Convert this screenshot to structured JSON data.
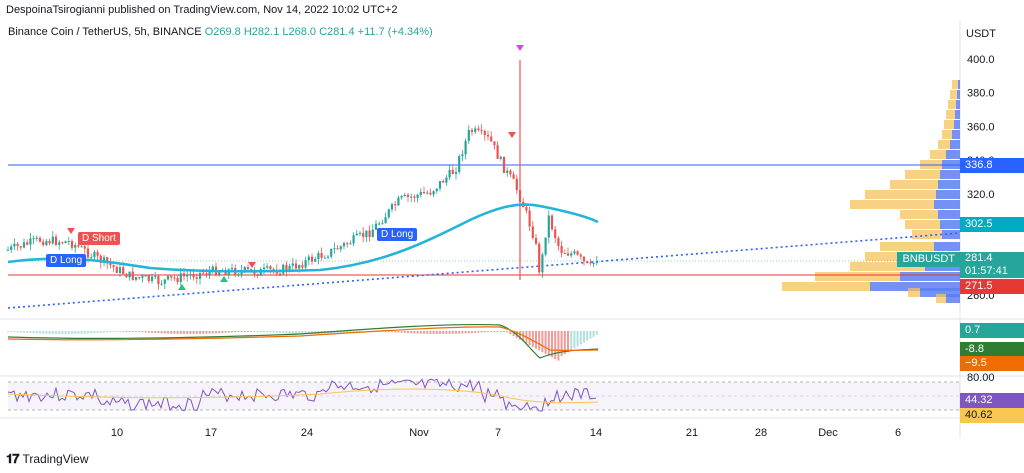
{
  "topline": "DespoinaTsirogianni published on TradingView.com, Nov 14, 2022 10:02 UTC+2",
  "symbol": {
    "name": "Binance Coin / TetherUS, 5h, BINANCE",
    "open": "O269.8",
    "high": "H282.1",
    "low": "L268.0",
    "close": "C281.4",
    "change": "+11.7 (+4.34%)"
  },
  "currency": "USDT",
  "price_axis": [
    "400.0",
    "380.0",
    "360.0",
    "340.0",
    "320.0",
    "300.0",
    "280.0",
    "260.0"
  ],
  "price_tags": {
    "level_upper": "336.8",
    "ma_value": "302.5",
    "last_symbol": "BNBUSDT",
    "last_price": "281.4",
    "countdown": "01:57:41",
    "level_lower": "271.5"
  },
  "macd_tags": [
    "0.7",
    "-8.8",
    "−9.5"
  ],
  "rsi_axis": "80.00",
  "rsi_tags": [
    "44.32",
    "40.62"
  ],
  "time_axis": [
    "10",
    "17",
    "24",
    "Nov",
    "7",
    "14",
    "21",
    "28",
    "Dec",
    "6"
  ],
  "signals": [
    "D Short",
    "D Long",
    "D Long"
  ],
  "footer": "TradingView",
  "colors": {
    "up": "#26a69a",
    "down": "#ef5350",
    "ma": "#22b5d6",
    "level_blue": "#2962ff",
    "level_red": "#e53935",
    "rsi": "#7e57c2",
    "volume_profile_blue": "#5b7ff2",
    "volume_profile_yellow": "#f5c15c"
  }
}
